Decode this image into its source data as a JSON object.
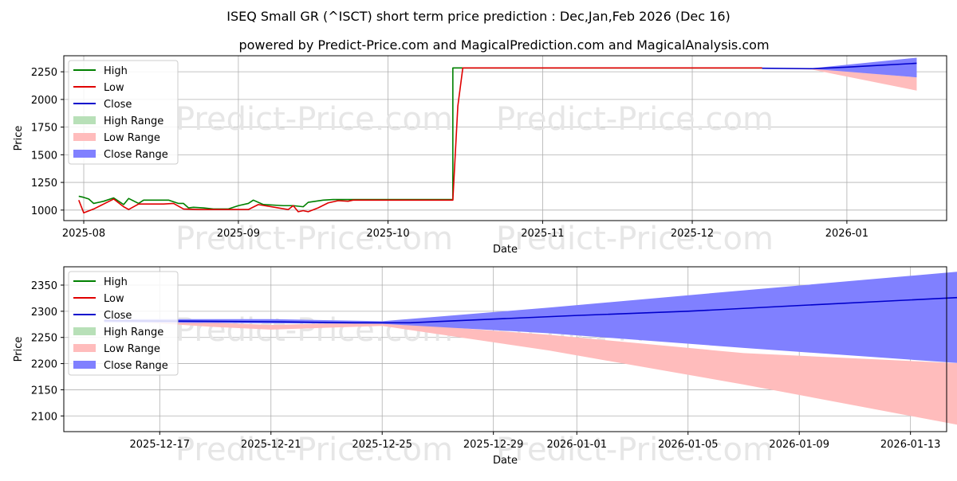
{
  "title": "ISEQ Small GR (^ISCT) short term price prediction : Dec,Jan,Feb 2026 (Dec 16)",
  "subtitle": "powered by Predict-Price.com and MagicalPrediction.com and MagicalAnalysis.com",
  "watermark": "Predict-Price.com",
  "colors": {
    "high": "#008000",
    "low": "#e00000",
    "close": "#0000cc",
    "high_range": "#b8e0b8",
    "low_range": "#ffbcbc",
    "close_range": "#8080ff",
    "grid": "#b0b0b0",
    "watermark": "#e6e6e6"
  },
  "legend": [
    "High",
    "Low",
    "Close",
    "High Range",
    "Low Range",
    "Close Range"
  ],
  "chart_data": [
    {
      "type": "line",
      "name": "full-history",
      "xlabel": "Date",
      "ylabel": "Price",
      "ylim": [
        905,
        2395
      ],
      "yticks": [
        1000,
        1250,
        1500,
        1750,
        2000,
        2250
      ],
      "x_domain": [
        "2025-07-28",
        "2026-01-21"
      ],
      "xticks": [
        {
          "label": "2025-08",
          "date": "2025-08-01"
        },
        {
          "label": "2025-09",
          "date": "2025-09-01"
        },
        {
          "label": "2025-10",
          "date": "2025-10-01"
        },
        {
          "label": "2025-11",
          "date": "2025-11-01"
        },
        {
          "label": "2025-12",
          "date": "2025-12-01"
        },
        {
          "label": "2026-01",
          "date": "2026-01-01"
        }
      ],
      "series": [
        {
          "name": "High",
          "points": [
            [
              "2025-07-31",
              1125
            ],
            [
              "2025-08-01",
              1115
            ],
            [
              "2025-08-02",
              1100
            ],
            [
              "2025-08-03",
              1060
            ],
            [
              "2025-08-05",
              1080
            ],
            [
              "2025-08-07",
              1110
            ],
            [
              "2025-08-09",
              1050
            ],
            [
              "2025-08-10",
              1105
            ],
            [
              "2025-08-12",
              1060
            ],
            [
              "2025-08-13",
              1090
            ],
            [
              "2025-08-15",
              1090
            ],
            [
              "2025-08-18",
              1090
            ],
            [
              "2025-08-20",
              1060
            ],
            [
              "2025-08-21",
              1060
            ],
            [
              "2025-08-22",
              1020
            ],
            [
              "2025-08-23",
              1025
            ],
            [
              "2025-08-25",
              1020
            ],
            [
              "2025-08-27",
              1010
            ],
            [
              "2025-08-30",
              1010
            ],
            [
              "2025-09-01",
              1040
            ],
            [
              "2025-09-03",
              1060
            ],
            [
              "2025-09-04",
              1090
            ],
            [
              "2025-09-06",
              1050
            ],
            [
              "2025-09-10",
              1040
            ],
            [
              "2025-09-12",
              1040
            ],
            [
              "2025-09-14",
              1030
            ],
            [
              "2025-09-15",
              1070
            ],
            [
              "2025-09-18",
              1090
            ],
            [
              "2025-09-20",
              1095
            ],
            [
              "2025-09-21",
              1095
            ],
            [
              "2025-09-23",
              1095
            ],
            [
              "2025-10-13",
              1095
            ],
            [
              "2025-10-14",
              1095
            ],
            [
              "2025-10-14",
              2285
            ],
            [
              "2025-10-28",
              2285
            ],
            [
              "2025-12-15",
              2285
            ]
          ]
        },
        {
          "name": "Low",
          "points": [
            [
              "2025-07-31",
              1090
            ],
            [
              "2025-08-01",
              975
            ],
            [
              "2025-08-03",
              1010
            ],
            [
              "2025-08-05",
              1055
            ],
            [
              "2025-08-07",
              1100
            ],
            [
              "2025-08-09",
              1030
            ],
            [
              "2025-08-10",
              1005
            ],
            [
              "2025-08-12",
              1055
            ],
            [
              "2025-08-15",
              1055
            ],
            [
              "2025-08-17",
              1055
            ],
            [
              "2025-08-19",
              1060
            ],
            [
              "2025-08-21",
              1010
            ],
            [
              "2025-08-24",
              1005
            ],
            [
              "2025-08-27",
              1005
            ],
            [
              "2025-08-31",
              1005
            ],
            [
              "2025-09-01",
              1005
            ],
            [
              "2025-09-03",
              1005
            ],
            [
              "2025-09-05",
              1050
            ],
            [
              "2025-09-09",
              1020
            ],
            [
              "2025-09-11",
              1005
            ],
            [
              "2025-09-12",
              1040
            ],
            [
              "2025-09-13",
              985
            ],
            [
              "2025-09-14",
              995
            ],
            [
              "2025-09-15",
              985
            ],
            [
              "2025-09-17",
              1020
            ],
            [
              "2025-09-19",
              1065
            ],
            [
              "2025-09-21",
              1085
            ],
            [
              "2025-09-23",
              1080
            ],
            [
              "2025-09-24",
              1090
            ],
            [
              "2025-10-13",
              1090
            ],
            [
              "2025-10-14",
              1090
            ],
            [
              "2025-10-15",
              1940
            ],
            [
              "2025-10-16",
              2285
            ],
            [
              "2025-12-15",
              2285
            ]
          ]
        },
        {
          "name": "Close",
          "points": [
            [
              "2025-12-15",
              2282
            ],
            [
              "2025-12-25",
              2278
            ],
            [
              "2026-01-01",
              2292
            ],
            [
              "2026-01-15",
              2327
            ]
          ]
        }
      ],
      "ranges": [
        {
          "name": "Low Range",
          "upper": [
            [
              "2025-12-15",
              2284
            ],
            [
              "2025-12-25",
              2280
            ],
            [
              "2026-01-15",
              2200
            ]
          ],
          "lower": [
            [
              "2025-12-15",
              2282
            ],
            [
              "2025-12-25",
              2270
            ],
            [
              "2026-01-15",
              2080
            ]
          ]
        },
        {
          "name": "Close Range",
          "upper": [
            [
              "2025-12-15",
              2284
            ],
            [
              "2025-12-25",
              2282
            ],
            [
              "2026-01-15",
              2377
            ]
          ],
          "lower": [
            [
              "2025-12-15",
              2281
            ],
            [
              "2025-12-25",
              2276
            ],
            [
              "2026-01-15",
              2200
            ]
          ]
        }
      ]
    },
    {
      "type": "line",
      "name": "forecast-detail",
      "xlabel": "Date",
      "ylabel": "Price",
      "ylim": [
        2070,
        2385
      ],
      "yticks": [
        2100,
        2150,
        2200,
        2250,
        2300,
        2350
      ],
      "x_domain": [
        -1.45,
        30.3
      ],
      "x_origin": "2025-12-15",
      "xticks": [
        {
          "label": "2025-12-17",
          "day": 2
        },
        {
          "label": "2025-12-21",
          "day": 6
        },
        {
          "label": "2025-12-25",
          "day": 10
        },
        {
          "label": "2025-12-29",
          "day": 14
        },
        {
          "label": "2026-01-01",
          "day": 17
        },
        {
          "label": "2026-01-05",
          "day": 21
        },
        {
          "label": "2026-01-09",
          "day": 25
        },
        {
          "label": "2026-01-13",
          "day": 29
        }
      ],
      "series": [
        {
          "name": "High",
          "points": []
        },
        {
          "name": "Low",
          "points": []
        },
        {
          "name": "Close",
          "points": [
            [
              0,
              2282
            ],
            [
              3,
              2281
            ],
            [
              6,
              2280
            ],
            [
              9,
              2278
            ],
            [
              11,
              2278
            ],
            [
              14,
              2285
            ],
            [
              17,
              2292
            ],
            [
              21,
              2300
            ],
            [
              25,
              2311
            ],
            [
              31,
              2327
            ]
          ]
        }
      ],
      "ranges": [
        {
          "name": "Low Range",
          "upper": [
            [
              0,
              2283
            ],
            [
              4,
              2278
            ],
            [
              6,
              2274
            ],
            [
              10,
              2279
            ],
            [
              16,
              2255
            ],
            [
              23,
              2220
            ],
            [
              31,
              2200
            ]
          ],
          "lower": [
            [
              0,
              2283
            ],
            [
              4,
              2270
            ],
            [
              6,
              2265
            ],
            [
              10,
              2272
            ],
            [
              16,
              2225
            ],
            [
              23,
              2160
            ],
            [
              31,
              2080
            ]
          ]
        },
        {
          "name": "Close Range",
          "upper": [
            [
              0,
              2285
            ],
            [
              6,
              2285
            ],
            [
              10,
              2281
            ],
            [
              16,
              2307
            ],
            [
              23,
              2340
            ],
            [
              31,
              2377
            ]
          ],
          "lower": [
            [
              0,
              2279
            ],
            [
              6,
              2277
            ],
            [
              10,
              2276
            ],
            [
              16,
              2258
            ],
            [
              23,
              2230
            ],
            [
              31,
              2200
            ]
          ]
        }
      ]
    }
  ]
}
